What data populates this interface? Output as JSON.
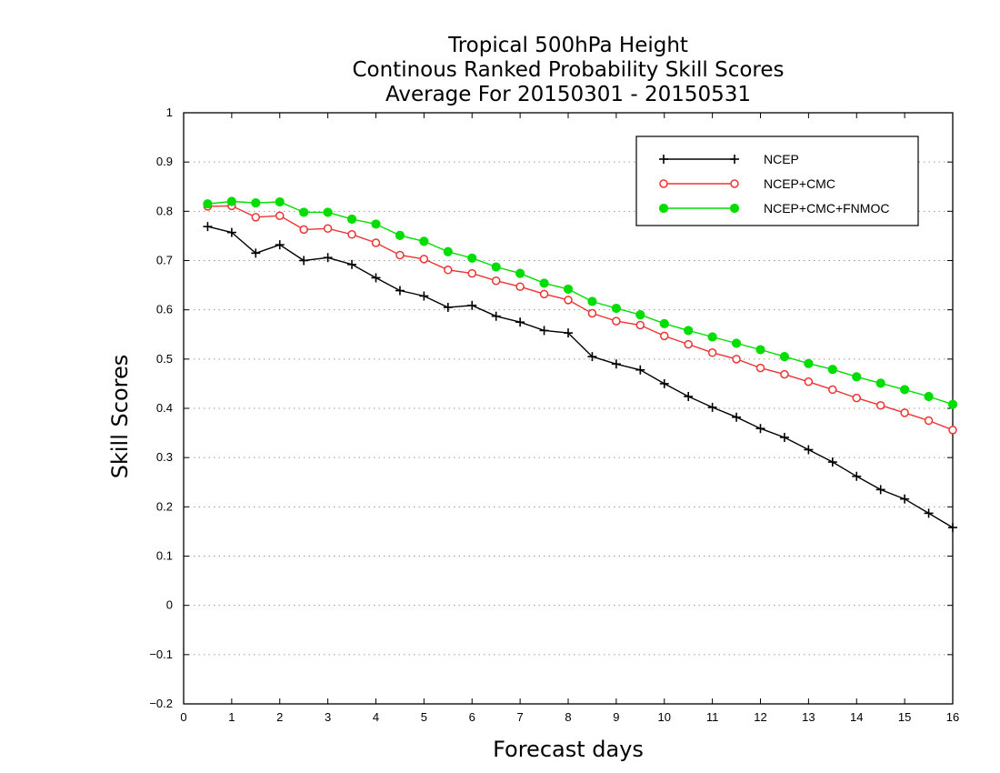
{
  "chart_data": {
    "type": "line",
    "title": [
      "Tropical 500hPa Height",
      "Continous Ranked Probability Skill Scores",
      "Average For 20150301 - 20150531"
    ],
    "xlabel": "Forecast days",
    "ylabel": "Skill Scores",
    "xlim": [
      0,
      16
    ],
    "ylim": [
      -0.2,
      1
    ],
    "xticks": [
      "0",
      "1",
      "2",
      "3",
      "4",
      "5",
      "6",
      "7",
      "8",
      "9",
      "10",
      "11",
      "12",
      "13",
      "14",
      "15",
      "16"
    ],
    "yticks": [
      "1",
      "0.9",
      "0.8",
      "0.7",
      "0.6",
      "0.5",
      "0.4",
      "0.3",
      "0.2",
      "0.1",
      "0",
      "-0.1",
      "-0.2"
    ],
    "grid": true,
    "legend_position": "top-right",
    "x": [
      0.5,
      1,
      1.5,
      2,
      2.5,
      3,
      3.5,
      4,
      4.5,
      5,
      5.5,
      6,
      6.5,
      7,
      7.5,
      8,
      8.5,
      9,
      9.5,
      10,
      10.5,
      11,
      11.5,
      12,
      12.5,
      13,
      13.5,
      14,
      14.5,
      15,
      15.5,
      16
    ],
    "series": [
      {
        "name": "NCEP",
        "color": "#000000",
        "marker": "plus",
        "values": [
          0.769,
          0.757,
          0.715,
          0.732,
          0.7,
          0.706,
          0.692,
          0.665,
          0.639,
          0.628,
          0.605,
          0.609,
          0.587,
          0.575,
          0.558,
          0.553,
          0.505,
          0.49,
          0.478,
          0.45,
          0.424,
          0.402,
          0.382,
          0.359,
          0.341,
          0.316,
          0.291,
          0.262,
          0.235,
          0.216,
          0.187,
          0.158
        ]
      },
      {
        "name": "NCEP+CMC",
        "color": "#ee3333",
        "marker": "open-circle",
        "values": [
          0.81,
          0.811,
          0.788,
          0.791,
          0.763,
          0.765,
          0.753,
          0.736,
          0.711,
          0.703,
          0.681,
          0.674,
          0.659,
          0.647,
          0.632,
          0.62,
          0.593,
          0.577,
          0.569,
          0.547,
          0.53,
          0.513,
          0.5,
          0.482,
          0.469,
          0.454,
          0.438,
          0.421,
          0.406,
          0.391,
          0.375,
          0.356
        ]
      },
      {
        "name": "NCEP+CMC+FNMOC",
        "color": "#00dd00",
        "marker": "filled-circle",
        "values": [
          0.815,
          0.82,
          0.817,
          0.819,
          0.798,
          0.798,
          0.784,
          0.774,
          0.751,
          0.739,
          0.718,
          0.705,
          0.687,
          0.674,
          0.654,
          0.642,
          0.617,
          0.603,
          0.59,
          0.572,
          0.558,
          0.545,
          0.532,
          0.519,
          0.505,
          0.491,
          0.479,
          0.464,
          0.451,
          0.438,
          0.424,
          0.408
        ]
      }
    ]
  }
}
